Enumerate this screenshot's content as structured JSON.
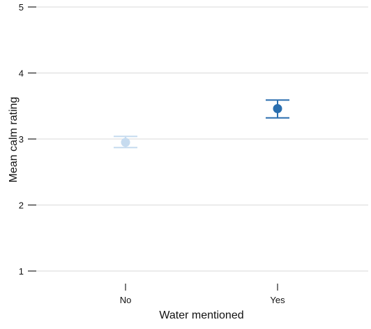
{
  "chart_data": {
    "type": "scatter",
    "subtype": "point-with-error-bars",
    "title": "",
    "xlabel": "Water mentioned",
    "ylabel": "Mean calm rating",
    "categories": [
      "No",
      "Yes"
    ],
    "ylim": [
      1,
      5
    ],
    "yticks": [
      "1",
      "2",
      "3",
      "4",
      "5"
    ],
    "grid": "horizontal",
    "legend": "none",
    "points": [
      {
        "category": "No",
        "value": 2.95,
        "lower": 2.87,
        "upper": 3.04,
        "color": "#c6dbef"
      },
      {
        "category": "Yes",
        "value": 3.46,
        "lower": 3.32,
        "upper": 3.59,
        "color": "#2b6faf"
      }
    ]
  },
  "colors": {
    "grid": "#d9d9d9",
    "axis": "#222222",
    "text": "#111111"
  }
}
